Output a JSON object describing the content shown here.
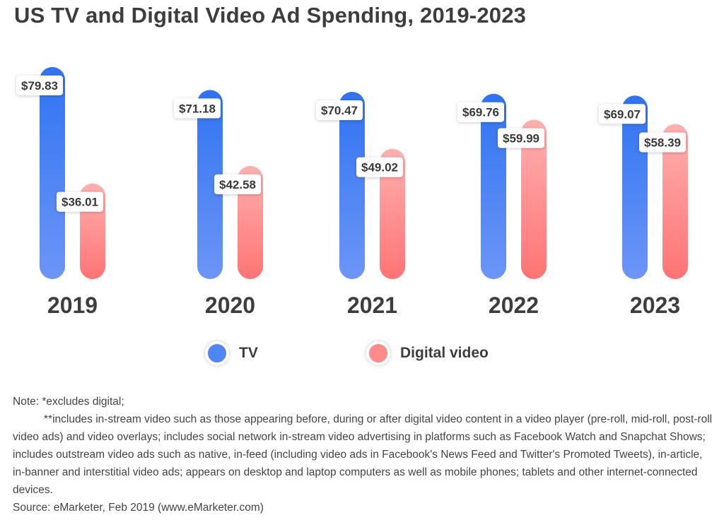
{
  "chart_data": {
    "type": "bar",
    "title": "US TV and Digital Video Ad Spending, 2019-2023",
    "categories": [
      "2019",
      "2020",
      "2021",
      "2022",
      "2023"
    ],
    "series": [
      {
        "name": "TV",
        "values": [
          79.83,
          71.18,
          70.47,
          69.76,
          69.07
        ],
        "labels": [
          "$79.83",
          "$71.18",
          "$70.47",
          "$69.76",
          "$69.07"
        ],
        "color": "#3b7cf2"
      },
      {
        "name": "Digital video",
        "values": [
          36.01,
          42.58,
          49.02,
          59.99,
          58.39
        ],
        "labels": [
          "$36.01",
          "$42.58",
          "$49.02",
          "$59.99",
          "$58.39"
        ],
        "color": "#ff7d7d"
      }
    ],
    "ylim": [
      0,
      80
    ],
    "grid": false,
    "legend": "bottom-center"
  },
  "notes": {
    "line1": "Note: *excludes digital;",
    "line2": "**includes in-stream video such as those appearing before, during or after digital video content in a video player (pre-roll, mid-roll, post-roll video ads) and video overlays; includes social network in-stream video advertising in platforms such as Facebook Watch and Snapchat Shows; includes outstream video ads such as native, in-feed (including video ads in Facebook's News Feed and Twitter's Promoted Tweets), in-article, in-banner and interstitial video ads; appears on desktop and laptop computers as well as mobile phones; tablets and other internet-connected devices.",
    "source": "Source: eMarketer, Feb 2019 (www.eMarketer.com)"
  }
}
